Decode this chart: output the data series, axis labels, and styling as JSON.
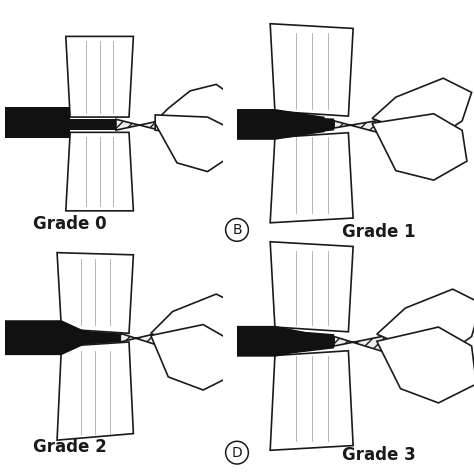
{
  "background_color": "#ffffff",
  "labels": [
    "Grade 0",
    "Grade 1",
    "Grade 2",
    "Grade 3"
  ],
  "circle_labels": [
    "B",
    "D"
  ],
  "label_fontsize": 12,
  "circle_fontsize": 10,
  "figsize": [
    4.74,
    4.74
  ],
  "dpi": 100,
  "ec": "#1a1a1a",
  "fc_white": "#ffffff",
  "fc_dark": "#111111",
  "lw": 1.2
}
